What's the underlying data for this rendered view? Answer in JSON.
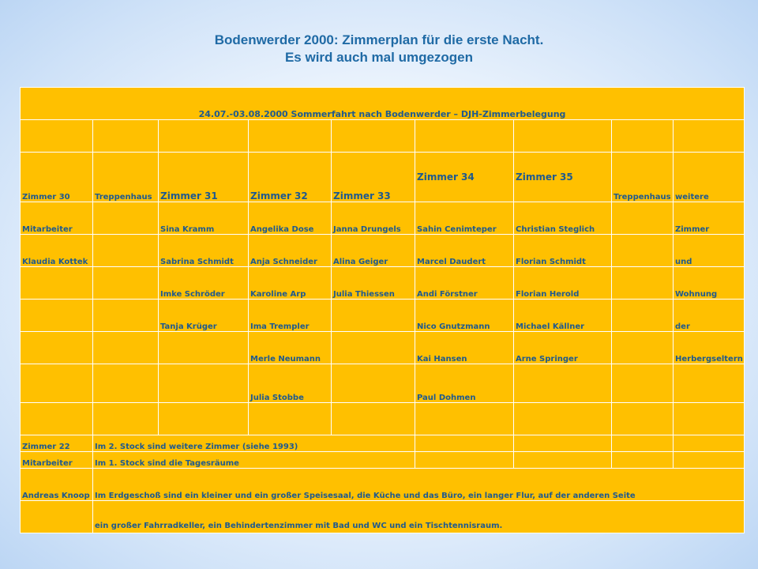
{
  "title": {
    "line1": "Bodenwerder 2000: Zimmerplan für die erste Nacht.",
    "line2": "Es wird auch mal umgezogen"
  },
  "table": {
    "header": "24.07.-03.08.2000   Sommerfahrt nach Bodenwerder – DJH-Zimmerbelegung",
    "left_column": [
      "Zimmer 30",
      "Mitarbeiter",
      "Klaudia Kottek"
    ],
    "stairs_label": "Treppenhaus",
    "rooms": [
      "Zimmer 31",
      "Zimmer 32",
      "Zimmer 33",
      "Zimmer 34",
      "Zimmer 35"
    ],
    "right_column": [
      "weitere",
      "Zimmer",
      "und",
      "Wohnung",
      "der",
      "Herbergseltern"
    ],
    "occupants": {
      "zimmer31": [
        "Sina Kramm",
        "Sabrina Schmidt",
        "Imke Schröder",
        "Tanja Krüger"
      ],
      "zimmer32": [
        "Angelika Dose",
        "Anja Schneider",
        "Karoline Arp",
        "Ima Trempler",
        "Merle Neumann",
        "Julia Stobbe"
      ],
      "zimmer33": [
        "Janna Drungels",
        "Alina Geiger",
        "Julia Thiessen"
      ],
      "zimmer34": [
        "Sahin Cenimteper",
        "Marcel Daudert",
        "Andi Förstner",
        "Nico Gnutzmann",
        "Kai Hansen",
        "Paul Dohmen"
      ],
      "zimmer35": [
        "Christian Steglich",
        "Florian Schmidt",
        "Florian Herold",
        "Michael Källner",
        "Arne Springer"
      ]
    },
    "footer": {
      "zimmer22": "Zimmer 22",
      "note_2stock": "Im 2. Stock  sind weitere Zimmer (siehe 1993)",
      "mitarbeiter": "Mitarbeiter",
      "note_1stock": "Im 1. Stock sind die Tagesräume",
      "andreas": "Andreas Knoop",
      "note_eg1": "Im Erdgeschoß  sind ein kleiner und ein großer Speisesaal,  die Küche und das Büro, ein langer Flur, auf der anderen Seite",
      "note_eg2": "ein großer Fahrradkeller, ein Behindertenzimmer mit Bad und WC und ein Tischtennisraum."
    }
  }
}
